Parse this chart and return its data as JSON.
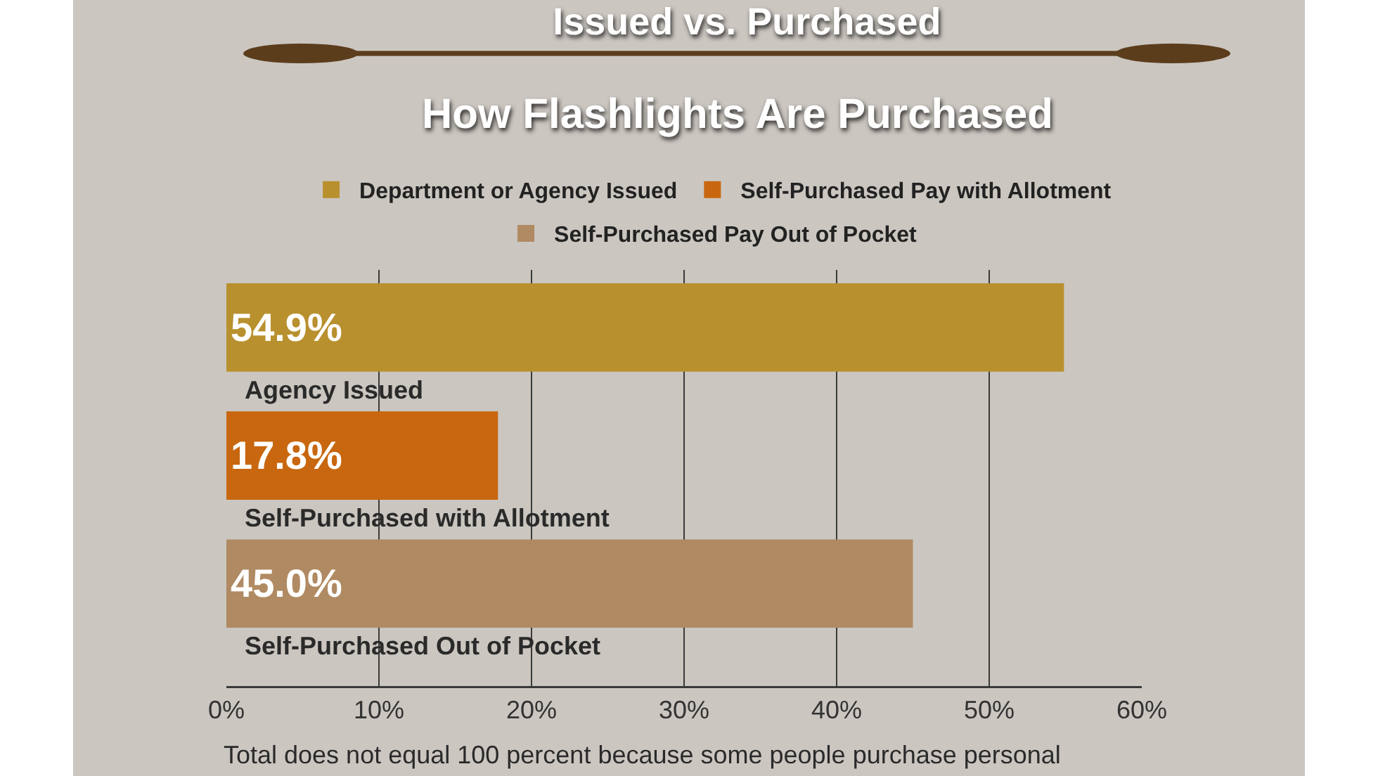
{
  "chart_data": {
    "type": "bar",
    "orientation": "horizontal",
    "title": "Issued vs. Purchased",
    "subtitle": "How Flashlights Are Purchased",
    "categories": [
      "Agency Issued",
      "Self-Purchased with Allotment",
      "Self-Purchased Out of Pocket"
    ],
    "series": [
      {
        "name": "Department or Agency Issued",
        "color": "#b8902e",
        "values": [
          54.9,
          null,
          null
        ],
        "value_labels": [
          "54.9%",
          null,
          null
        ]
      },
      {
        "name": "Self-Purchased Pay with Allotment",
        "color": "#c8670f",
        "values": [
          null,
          17.8,
          null
        ],
        "value_labels": [
          null,
          "17.8%",
          null
        ]
      },
      {
        "name": "Self-Purchased Pay Out of Pocket",
        "color": "#b08a62",
        "values": [
          null,
          null,
          45.0
        ],
        "value_labels": [
          null,
          null,
          "45.0%"
        ]
      }
    ],
    "xlim": [
      0,
      60
    ],
    "xticks": [
      {
        "value": 0,
        "label": "0%"
      },
      {
        "value": 10,
        "label": "10%"
      },
      {
        "value": 20,
        "label": "20%"
      },
      {
        "value": 30,
        "label": "30%"
      },
      {
        "value": 40,
        "label": "40%"
      },
      {
        "value": 50,
        "label": "50%"
      },
      {
        "value": 60,
        "label": "60%"
      }
    ],
    "grid": "x",
    "legend": "top",
    "annotations": [
      "Total does not equal 100 percent because some people purchase personal"
    ]
  }
}
